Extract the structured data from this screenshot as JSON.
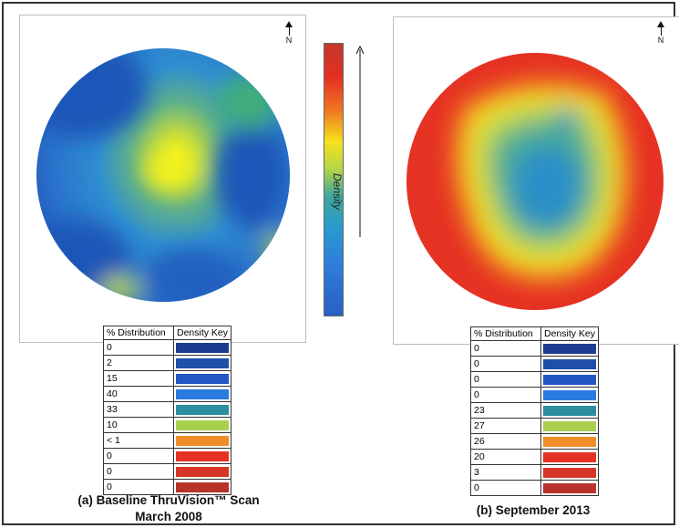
{
  "chart_data": [
    {
      "type": "heatmap",
      "panel": "a",
      "caption_line1": "(a) Baseline ThruVision™ Scan",
      "caption_line2": "March 2008",
      "north_label": "N",
      "table_headers": [
        "% Distribution",
        "Density Key"
      ],
      "distribution": [
        "0",
        "2",
        "15",
        "40",
        "33",
        "10",
        "< 1",
        "0",
        "0",
        "0"
      ]
    },
    {
      "type": "heatmap",
      "panel": "b",
      "caption": "(b) September 2013",
      "north_label": "N",
      "table_headers": [
        "% Distribution",
        "Density Key"
      ],
      "distribution": [
        "0",
        "0",
        "0",
        "0",
        "23",
        "27",
        "26",
        "20",
        "3",
        "0"
      ]
    }
  ],
  "scale_label": "Density",
  "density_key_colors": [
    "#1c3d8f",
    "#1f4fa8",
    "#2258c4",
    "#2a7be0",
    "#2c8f9f",
    "#a9cf4f",
    "#f08c2a",
    "#e63223",
    "#d63628",
    "#b8322a"
  ]
}
